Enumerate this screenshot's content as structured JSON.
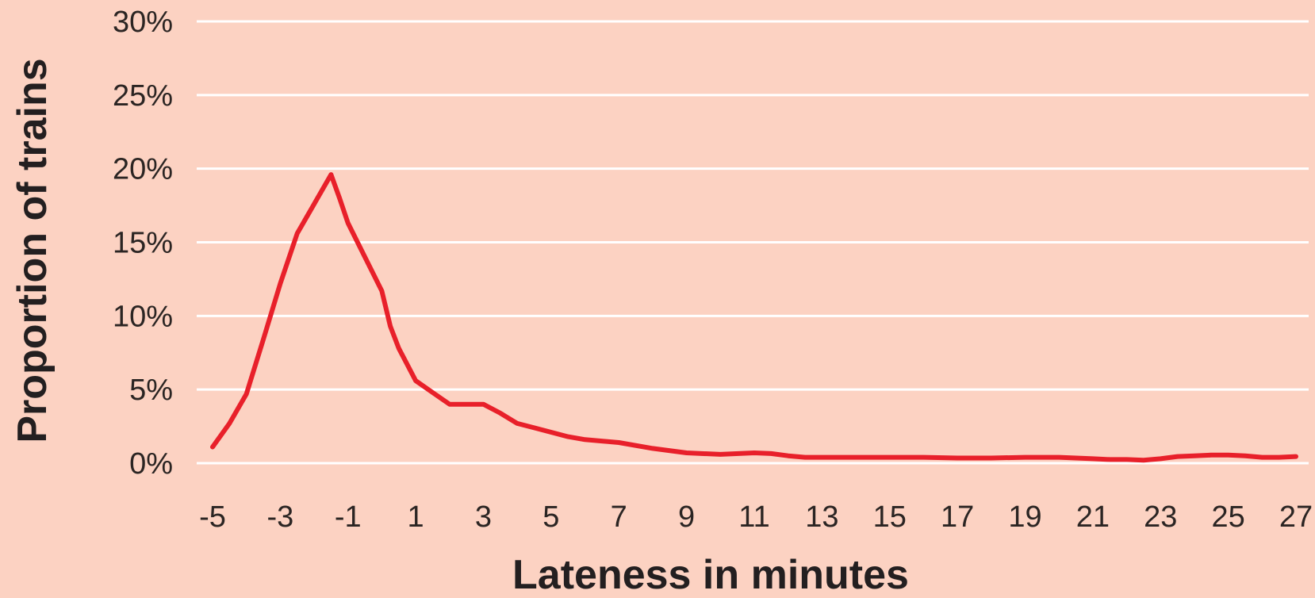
{
  "chart_data": {
    "type": "line",
    "xlabel": "Lateness in minutes",
    "ylabel": "Proportion of trains",
    "xlim": [
      -5,
      27
    ],
    "ylim": [
      0,
      30
    ],
    "x_ticks": [
      -5,
      -3,
      -1,
      1,
      3,
      5,
      7,
      9,
      11,
      13,
      15,
      17,
      19,
      21,
      23,
      25,
      27
    ],
    "x_tick_labels": [
      "-5",
      "-3",
      "-1",
      "1",
      "3",
      "5",
      "7",
      "9",
      "11",
      "13",
      "15",
      "17",
      "19",
      "21",
      "23",
      "25",
      "27"
    ],
    "y_ticks": [
      0,
      5,
      10,
      15,
      20,
      25,
      30
    ],
    "y_tick_labels": [
      "0%",
      "5%",
      "10%",
      "15%",
      "20%",
      "25%",
      "30%"
    ],
    "grid": true,
    "series": [
      {
        "color": "#e8202a",
        "x": [
          -5,
          -4.5,
          -4,
          -3.5,
          -3,
          -2.5,
          -2,
          -1.5,
          -1.25,
          -1,
          -0.5,
          0,
          0.25,
          0.5,
          1,
          1.5,
          2,
          2.5,
          3,
          3.5,
          4,
          4.5,
          5,
          5.5,
          6,
          7,
          8,
          9,
          10,
          11,
          11.5,
          12,
          12.5,
          13,
          14,
          15,
          16,
          17,
          18,
          19,
          20,
          21,
          21.5,
          22,
          22.5,
          23,
          23.5,
          24,
          24.5,
          25,
          25.5,
          26,
          26.5,
          27
        ],
        "y": [
          1.1,
          2.7,
          4.7,
          8.4,
          12.2,
          15.6,
          17.6,
          19.6,
          18.0,
          16.3,
          14.0,
          11.7,
          9.3,
          7.8,
          5.6,
          4.8,
          4.0,
          4.0,
          4.0,
          3.4,
          2.7,
          2.4,
          2.1,
          1.8,
          1.6,
          1.4,
          1.0,
          0.7,
          0.6,
          0.7,
          0.65,
          0.5,
          0.4,
          0.4,
          0.4,
          0.4,
          0.4,
          0.35,
          0.35,
          0.4,
          0.4,
          0.3,
          0.25,
          0.25,
          0.2,
          0.3,
          0.45,
          0.5,
          0.55,
          0.55,
          0.5,
          0.4,
          0.4,
          0.45
        ]
      }
    ]
  }
}
